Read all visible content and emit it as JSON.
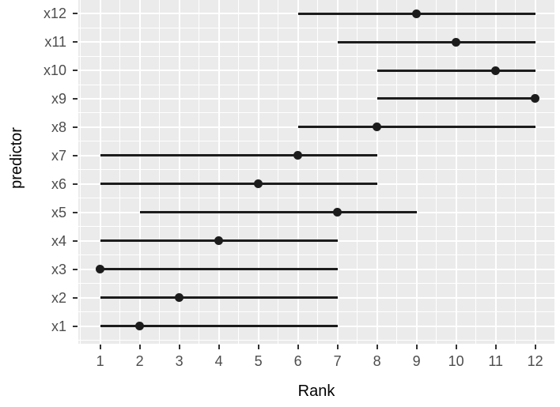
{
  "chart_data": {
    "type": "scatter",
    "subtype": "pointrange",
    "title": "",
    "xlabel": "Rank",
    "ylabel": "predictor",
    "x_tick_values": [
      1,
      2,
      3,
      4,
      5,
      6,
      7,
      8,
      9,
      10,
      11,
      12
    ],
    "xlim": [
      0.45,
      12.55
    ],
    "grid": {
      "major": true,
      "minor": true,
      "legend": "none"
    },
    "rows": [
      {
        "predictor": "x1",
        "min": 1,
        "max": 7,
        "point": 2
      },
      {
        "predictor": "x2",
        "min": 1,
        "max": 7,
        "point": 3
      },
      {
        "predictor": "x3",
        "min": 1,
        "max": 7,
        "point": 1
      },
      {
        "predictor": "x4",
        "min": 1,
        "max": 7,
        "point": 4
      },
      {
        "predictor": "x5",
        "min": 2,
        "max": 9,
        "point": 7
      },
      {
        "predictor": "x6",
        "min": 1,
        "max": 8,
        "point": 5
      },
      {
        "predictor": "x7",
        "min": 1,
        "max": 8,
        "point": 6
      },
      {
        "predictor": "x8",
        "min": 6,
        "max": 12,
        "point": 8
      },
      {
        "predictor": "x9",
        "min": 8,
        "max": 12,
        "point": 12
      },
      {
        "predictor": "x10",
        "min": 8,
        "max": 12,
        "point": 11
      },
      {
        "predictor": "x11",
        "min": 7,
        "max": 12,
        "point": 10
      },
      {
        "predictor": "x12",
        "min": 6,
        "max": 12,
        "point": 9
      }
    ],
    "colors": {
      "panel_bg": "#EBEBEB",
      "grid_major": "#FFFFFF",
      "grid_minor": "#FFFFFF",
      "geom": "#1C1C1C",
      "axis_text": "#4D4D4D",
      "axis_ticks": "#333333",
      "axis_title": "#000000",
      "outer_bg": "#FFFFFF"
    }
  }
}
